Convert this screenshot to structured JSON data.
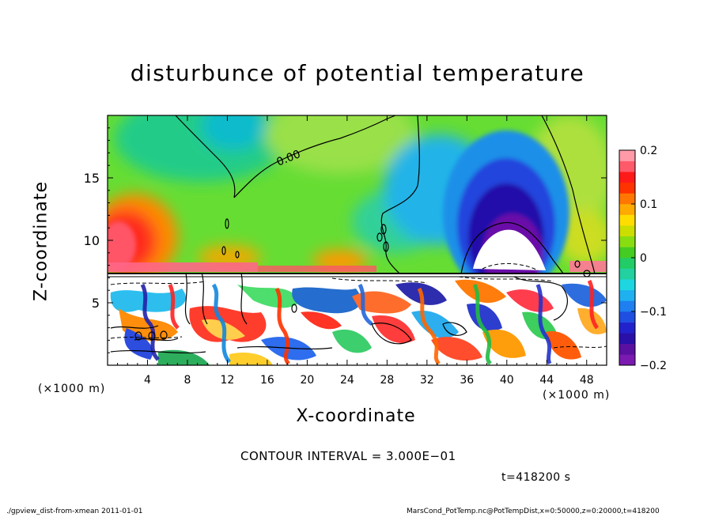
{
  "chart_data": {
    "type": "heatmap",
    "title": "disturbunce of potential temperature",
    "xlabel": "X-coordinate",
    "ylabel": "Z-coordinate",
    "x_unit_label": "(×1000 m)",
    "x_ticks": [
      "4",
      "8",
      "12",
      "16",
      "20",
      "24",
      "28",
      "32",
      "36",
      "40",
      "44",
      "48"
    ],
    "y_ticks": [
      "5",
      "10",
      "15"
    ],
    "xlim": [
      0,
      50
    ],
    "ylim": [
      0,
      20
    ],
    "colorbar": {
      "min": -0.2,
      "max": 0.2,
      "tick_labels": [
        "0.2",
        "0.1",
        "0",
        "−0.1",
        "−0.2"
      ],
      "tick_values": [
        0.2,
        0.1,
        0,
        -0.1,
        -0.2
      ]
    },
    "contour_label": "0.00",
    "grid": false
  },
  "annotations": {
    "contour_interval": "CONTOUR INTERVAL = 3.000E−01",
    "time": "t=418200 s"
  },
  "footer": {
    "left": "./gpview_dist-from-xmean  2011-01-01",
    "right": "MarsCond_PotTemp.nc@PotTempDist,x=0:50000,z=0:20000,t=418200"
  }
}
